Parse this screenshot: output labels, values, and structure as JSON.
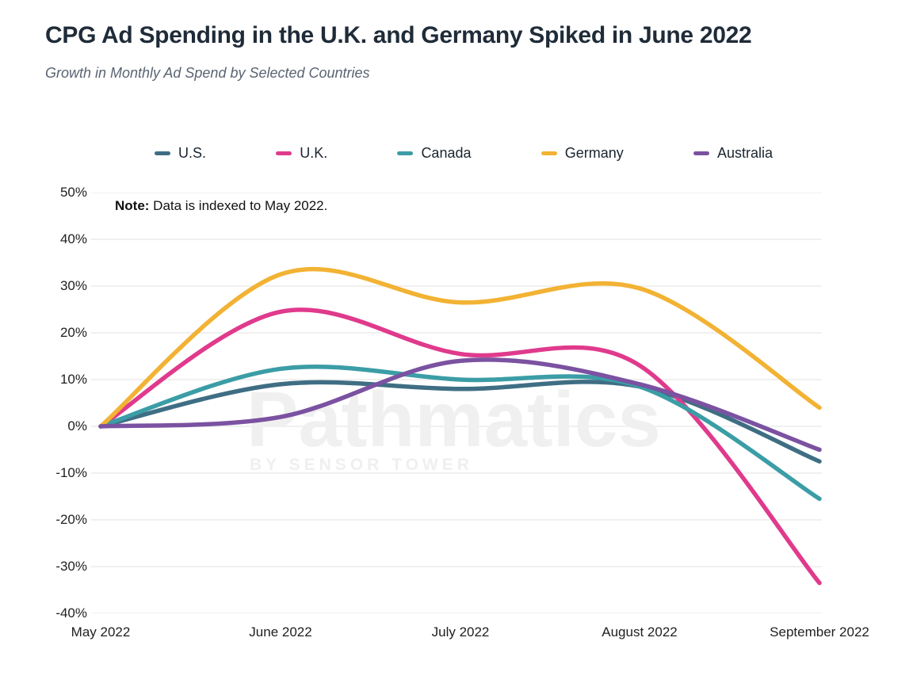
{
  "header": {
    "title": "CPG Ad Spending in the U.K. and Germany Spiked in June 2022",
    "subtitle": "Growth in Monthly Ad Spend by Selected Countries"
  },
  "note": {
    "label": "Note:",
    "text": " Data is indexed to May 2022."
  },
  "watermark": {
    "line1": "Pathmatics",
    "line2": "BY SENSOR TOWER"
  },
  "colors": {
    "title_text": "#1f2b38",
    "subtitle_text": "#5a6472",
    "axis_text": "#212121",
    "gridline": "#ececec",
    "watermark": "#f0f0f0"
  },
  "chart_data": {
    "type": "line",
    "title": "CPG Ad Spending in the U.K. and Germany Spiked in June 2022",
    "subtitle": "Growth in Monthly Ad Spend by Selected Countries",
    "categories": [
      "May 2022",
      "June 2022",
      "July 2022",
      "August 2022",
      "September 2022"
    ],
    "unit": "percent growth indexed to May 2022",
    "ylim": [
      -40,
      50
    ],
    "ytick_step": 10,
    "ytick_labels": [
      "50%",
      "40%",
      "30%",
      "20%",
      "10%",
      "0%",
      "-10%",
      "-20%",
      "-30%",
      "-40%"
    ],
    "grid": "horizontal-only",
    "legend_position": "top",
    "line_style": "smooth-spline",
    "series": [
      {
        "name": "U.S.",
        "color": "#3f6e84",
        "values": [
          0,
          9,
          8,
          8.5,
          -7.5
        ]
      },
      {
        "name": "U.K.",
        "color": "#e03a8c",
        "values": [
          0,
          24.5,
          15.5,
          13,
          -33.5
        ]
      },
      {
        "name": "Canada",
        "color": "#3b9da6",
        "values": [
          0,
          12.3,
          10,
          8.5,
          -15.5
        ]
      },
      {
        "name": "Germany",
        "color": "#f2b233",
        "values": [
          0,
          32.5,
          26.5,
          29.5,
          4
        ]
      },
      {
        "name": "Australia",
        "color": "#7b52a1",
        "values": [
          0,
          2,
          14,
          9,
          -5
        ]
      }
    ]
  }
}
